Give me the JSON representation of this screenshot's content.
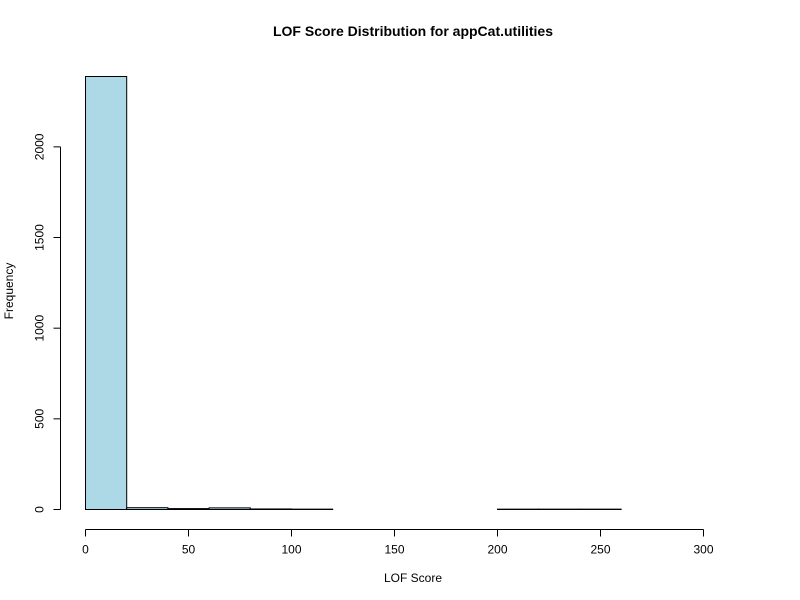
{
  "chart_data": {
    "type": "bar",
    "title": "LOF Score Distribution for appCat.utilities",
    "xlabel": "LOF Score",
    "ylabel": "Frequency",
    "bins": [
      {
        "start": 0,
        "end": 20,
        "count": 2388
      },
      {
        "start": 20,
        "end": 40,
        "count": 10
      },
      {
        "start": 40,
        "end": 60,
        "count": 5
      },
      {
        "start": 60,
        "end": 80,
        "count": 9
      },
      {
        "start": 80,
        "end": 100,
        "count": 3
      },
      {
        "start": 100,
        "end": 120,
        "count": 2
      },
      {
        "start": 120,
        "end": 140,
        "count": 0
      },
      {
        "start": 140,
        "end": 160,
        "count": 0
      },
      {
        "start": 160,
        "end": 180,
        "count": 0
      },
      {
        "start": 180,
        "end": 200,
        "count": 0
      },
      {
        "start": 200,
        "end": 220,
        "count": 2
      },
      {
        "start": 220,
        "end": 240,
        "count": 2
      },
      {
        "start": 240,
        "end": 260,
        "count": 2
      },
      {
        "start": 260,
        "end": 280,
        "count": 0
      },
      {
        "start": 280,
        "end": 300,
        "count": 0
      },
      {
        "start": 300,
        "end": 320,
        "count": 0
      }
    ],
    "xticks": [
      0,
      50,
      100,
      150,
      200,
      250,
      300
    ],
    "yticks": [
      0,
      500,
      1000,
      1500,
      2000
    ],
    "xlim": [
      0,
      320
    ],
    "ylim": [
      0,
      2388
    ],
    "bar_color": "#ADD8E6",
    "grid": false,
    "legend": "none"
  }
}
